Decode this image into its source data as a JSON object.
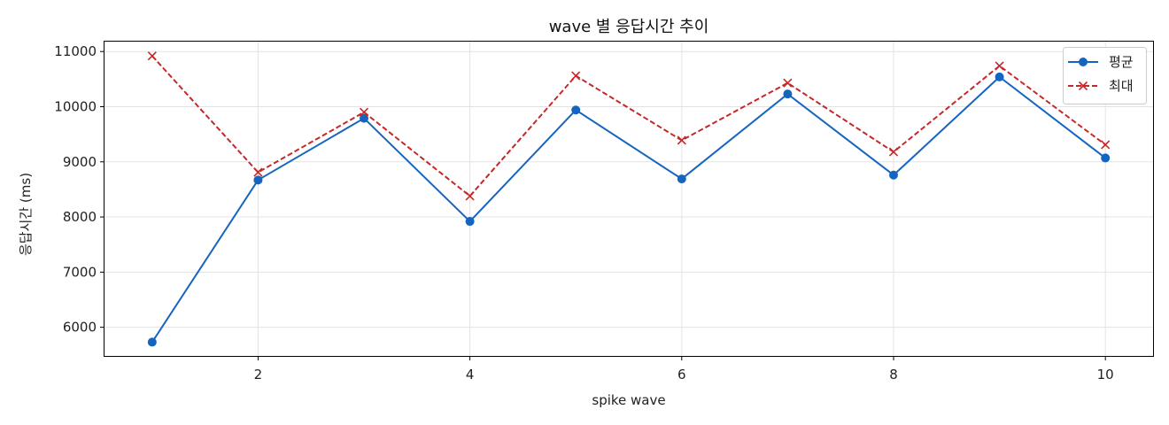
{
  "chart_data": {
    "type": "line",
    "title": "wave 별 응답시간 추이",
    "xlabel": "spike wave",
    "ylabel": "응답시간 (ms)",
    "x": [
      1,
      2,
      3,
      4,
      5,
      6,
      7,
      8,
      9,
      10
    ],
    "xlim": [
      0.55,
      10.45
    ],
    "ylim": [
      5480,
      11180
    ],
    "xticks": [
      2,
      4,
      6,
      8,
      10
    ],
    "yticks": [
      6000,
      7000,
      8000,
      9000,
      10000,
      11000
    ],
    "grid": true,
    "legend_position": "top-right",
    "series": [
      {
        "name": "평균",
        "color": "#1565c0",
        "line_style": "solid",
        "marker": "circle",
        "values": [
          5730,
          8670,
          9790,
          7920,
          9940,
          8690,
          10230,
          8760,
          10540,
          9070
        ]
      },
      {
        "name": "최대",
        "color": "#c62828",
        "line_style": "dashed",
        "marker": "x",
        "values": [
          10920,
          8810,
          9900,
          8380,
          10560,
          9390,
          10430,
          9180,
          10740,
          9310
        ]
      }
    ]
  }
}
